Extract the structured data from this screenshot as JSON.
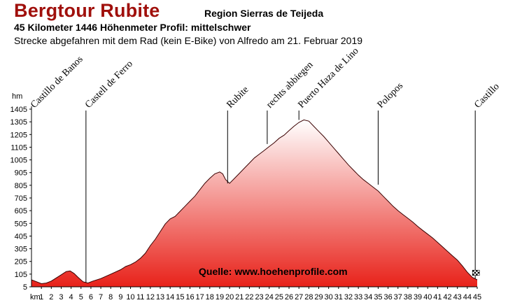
{
  "header": {
    "title": "Bergtour Rubite",
    "region": "Region Sierras de Teijeda",
    "stats": "45 Kilometer  1446 Höhenmeter  Profil: mittelschwer",
    "description": "Strecke abgefahren mit dem Rad (kein E-Bike) von Alfredo am 21. Februar 2019"
  },
  "chart_data": {
    "type": "area",
    "title": "Bergtour Rubite",
    "xlabel": "km",
    "ylabel": "hm",
    "xlim": [
      0,
      45
    ],
    "ylim": [
      5,
      1405
    ],
    "y_ticks": [
      5,
      105,
      205,
      305,
      405,
      505,
      605,
      705,
      805,
      905,
      1005,
      1105,
      1205,
      1305,
      1405
    ],
    "x_ticks": [
      1,
      2,
      3,
      4,
      5,
      6,
      7,
      8,
      9,
      10,
      11,
      12,
      13,
      14,
      15,
      16,
      17,
      18,
      19,
      20,
      21,
      22,
      23,
      24,
      25,
      26,
      27,
      28,
      29,
      30,
      31,
      32,
      33,
      34,
      35,
      36,
      37,
      38,
      39,
      40,
      41,
      42,
      43,
      44,
      45
    ],
    "grid": false,
    "fill_gradient": [
      "#ffffff",
      "#e8221a"
    ],
    "source": "Quelle: www.hoehenprofile.com",
    "series": [
      {
        "x": [
          0,
          0.5,
          1,
          1.5,
          2,
          2.5,
          3,
          3.5,
          3.9,
          4.3,
          4.7,
          5.2,
          5.7,
          6.2,
          7,
          8,
          9,
          9.5,
          10,
          10.5,
          11,
          11.5,
          12,
          12.5,
          13,
          13.5,
          14,
          14.5,
          15,
          15.5,
          16,
          16.5,
          17,
          17.5,
          18,
          18.5,
          19,
          19.3,
          19.6,
          20,
          20.5,
          21,
          21.5,
          22,
          22.5,
          23,
          23.5,
          24,
          24.5,
          25,
          25.5,
          26,
          26.5,
          27,
          27.5,
          28,
          28.5,
          29,
          29.5,
          30,
          30.5,
          31,
          31.5,
          32,
          32.5,
          33,
          33.5,
          34,
          34.5,
          35,
          35.5,
          36,
          36.5,
          37,
          37.5,
          38,
          38.5,
          39,
          39.5,
          40,
          40.5,
          41,
          41.5,
          42,
          42.5,
          43,
          43.5,
          44,
          44.5,
          45
        ],
        "y": [
          60,
          45,
          30,
          35,
          50,
          75,
          100,
          125,
          130,
          110,
          80,
          45,
          35,
          50,
          70,
          105,
          140,
          165,
          180,
          200,
          230,
          270,
          330,
          380,
          440,
          500,
          540,
          560,
          600,
          640,
          680,
          720,
          770,
          820,
          860,
          895,
          910,
          895,
          850,
          820,
          860,
          900,
          940,
          980,
          1020,
          1050,
          1080,
          1110,
          1140,
          1175,
          1200,
          1235,
          1270,
          1300,
          1320,
          1310,
          1270,
          1230,
          1190,
          1145,
          1100,
          1055,
          1010,
          965,
          925,
          885,
          850,
          820,
          790,
          760,
          720,
          680,
          640,
          605,
          575,
          545,
          515,
          480,
          450,
          420,
          390,
          355,
          320,
          285,
          250,
          215,
          170,
          120,
          80,
          60
        ]
      }
    ],
    "waypoints": [
      {
        "label": "Castillo de Banos",
        "km": 0,
        "hm": 60
      },
      {
        "label": "Castell de Ferro",
        "km": 5.5,
        "hm": 40
      },
      {
        "label": "Rubite",
        "km": 19.8,
        "hm": 820
      },
      {
        "label": "rechts abbiegen",
        "km": 23.8,
        "hm": 1130
      },
      {
        "label": "Puerto Haza de Lino",
        "km": 27,
        "hm": 1320
      },
      {
        "label": "Polopos",
        "km": 35,
        "hm": 810
      },
      {
        "label": "Castillo",
        "km": 44.8,
        "hm": 70
      }
    ]
  }
}
